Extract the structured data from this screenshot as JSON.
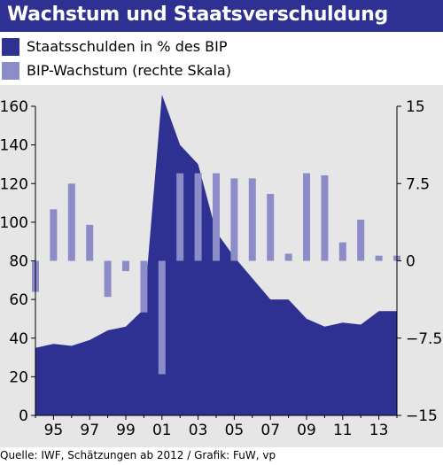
{
  "header": {
    "title": "Wachstum und Staatsverschuldung"
  },
  "legend": {
    "items": [
      {
        "label": "Staatsschulden in % des BIP",
        "color": "#2e3192"
      },
      {
        "label": "BIP-Wachstum (rechte Skala)",
        "color": "#8c8cc8"
      }
    ]
  },
  "footer": {
    "source": "Quelle: IWF, Schätzungen ab 2012 / Grafik: FuW, vp"
  },
  "chart_data": {
    "type": "area",
    "title": "Wachstum und Staatsverschuldung",
    "xlabel": "",
    "ylabel": "",
    "x": [
      1994,
      1995,
      1996,
      1997,
      1998,
      1999,
      2000,
      2001,
      2002,
      2003,
      2004,
      2005,
      2006,
      2007,
      2008,
      2009,
      2010,
      2011,
      2012,
      2013,
      2014
    ],
    "x_tick_labels": [
      "95",
      "97",
      "99",
      "01",
      "03",
      "05",
      "07",
      "09",
      "11",
      "13"
    ],
    "x_tick_years": [
      1995,
      1997,
      1999,
      2001,
      2003,
      2005,
      2007,
      2009,
      2011,
      2013
    ],
    "xlim": [
      1994,
      2014
    ],
    "y_left": {
      "lim": [
        0,
        160
      ],
      "ticks": [
        0,
        20,
        40,
        60,
        80,
        100,
        120,
        140,
        160
      ]
    },
    "y_right": {
      "lim": [
        -15,
        15
      ],
      "ticks": [
        -15,
        -7.5,
        0,
        7.5,
        15
      ],
      "tick_labels": [
        "−15",
        "−7.5",
        "0",
        "7.5",
        "15"
      ]
    },
    "grid": false,
    "series": [
      {
        "name": "Staatsschulden in % des BIP",
        "type": "area",
        "axis": "left",
        "color": "#2e3192",
        "x": [
          1994,
          1995,
          1996,
          1997,
          1998,
          1999,
          2000,
          2001,
          2002,
          2003,
          2004,
          2005,
          2006,
          2007,
          2008,
          2009,
          2010,
          2011,
          2012,
          2013,
          2014
        ],
        "values": [
          35,
          37,
          36,
          39,
          44,
          46,
          55,
          166,
          140,
          130,
          95,
          82,
          71,
          60,
          60,
          50,
          46,
          48,
          47,
          54,
          54
        ]
      },
      {
        "name": "BIP-Wachstum (rechte Skala)",
        "type": "bar",
        "axis": "right",
        "color": "#8c8cc8",
        "x": [
          1994,
          1995,
          1996,
          1997,
          1998,
          1999,
          2000,
          2001,
          2002,
          2003,
          2004,
          2005,
          2006,
          2007,
          2008,
          2009,
          2010,
          2011,
          2012,
          2013,
          2014
        ],
        "values": [
          -3.0,
          5.0,
          7.5,
          3.5,
          -3.5,
          -1.0,
          -5.0,
          -11.0,
          8.5,
          8.5,
          8.5,
          8.0,
          8.0,
          6.5,
          0.7,
          8.5,
          8.3,
          1.8,
          4.0,
          0.5,
          0.5
        ]
      }
    ]
  }
}
